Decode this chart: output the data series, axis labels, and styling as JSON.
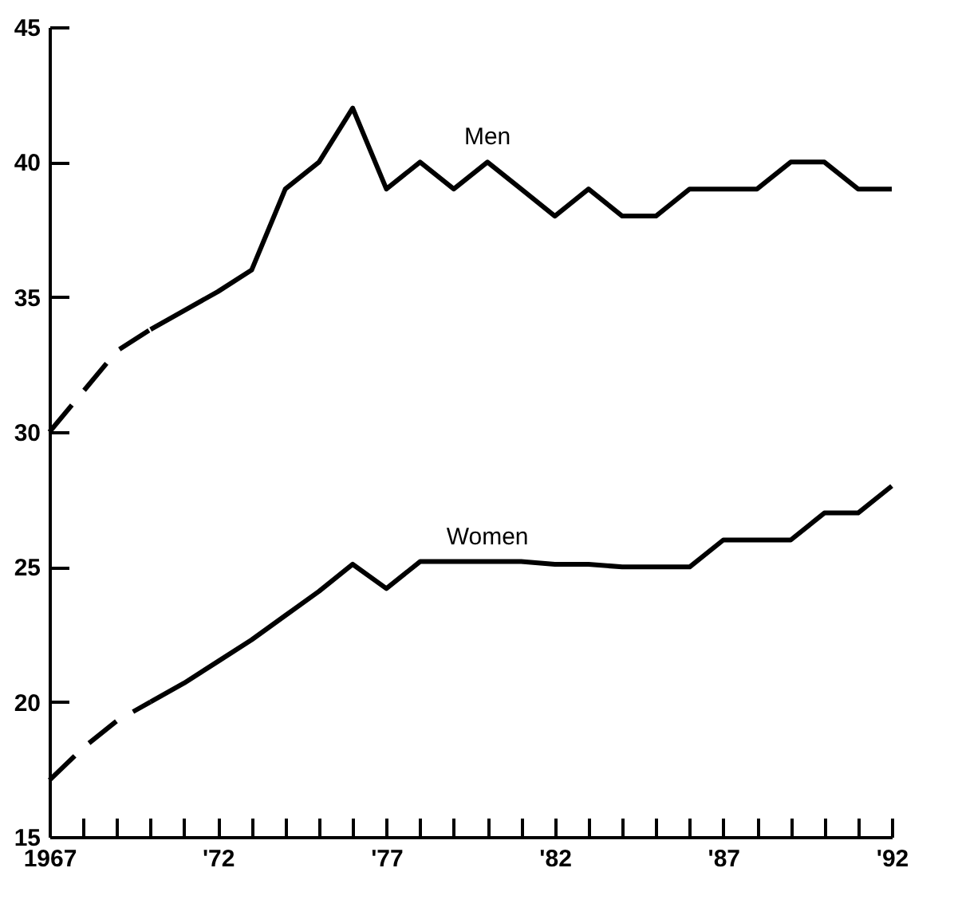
{
  "chart_data": {
    "type": "line",
    "x": [
      1970,
      1971,
      1972,
      1973,
      1974,
      1975,
      1976,
      1977,
      1978,
      1979,
      1980,
      1981,
      1982,
      1983,
      1984,
      1985,
      1986,
      1987,
      1988,
      1989,
      1990,
      1991,
      1992
    ],
    "series": [
      {
        "name": "Men",
        "color": "#000000",
        "line_style": "solid",
        "values": [
          33.8,
          34.5,
          35.2,
          36,
          39,
          40,
          42,
          39,
          40,
          39,
          40,
          39,
          38,
          39,
          38,
          38,
          39,
          39,
          39,
          40,
          40,
          39,
          39
        ]
      },
      {
        "name": "Women",
        "color": "#000000",
        "line_style": "solid",
        "values": [
          20,
          20.7,
          21.5,
          22.3,
          23.2,
          24.1,
          25.1,
          24.2,
          25.2,
          25.2,
          25.2,
          25.2,
          25.1,
          25.1,
          25,
          25,
          25,
          26,
          26,
          26,
          27,
          27,
          28
        ]
      },
      {
        "color": "#000000",
        "line_style": "dashed",
        "x": [
          1967,
          1968,
          1969,
          1970
        ],
        "values": [
          30,
          31.5,
          33,
          33.8
        ]
      },
      {
        "color": "#000000",
        "line_style": "dashed",
        "x": [
          1967,
          1968,
          1969,
          1970
        ],
        "values": [
          17.1,
          18.3,
          19.3,
          20
        ]
      }
    ],
    "xlim": [
      1967,
      1992
    ],
    "ylim": [
      15,
      45
    ],
    "yticks": [
      15,
      20,
      25,
      30,
      35,
      40,
      45
    ],
    "xticks": [
      {
        "value": 1967,
        "label": "1967"
      },
      {
        "value": 1968,
        "label": null
      },
      {
        "value": 1969,
        "label": null
      },
      {
        "value": 1970,
        "label": null
      },
      {
        "value": 1971,
        "label": null
      },
      {
        "value": 1972,
        "label": "'72"
      },
      {
        "value": 1973,
        "label": null
      },
      {
        "value": 1974,
        "label": null
      },
      {
        "value": 1975,
        "label": null
      },
      {
        "value": 1976,
        "label": null
      },
      {
        "value": 1977,
        "label": "'77"
      },
      {
        "value": 1978,
        "label": null
      },
      {
        "value": 1979,
        "label": null
      },
      {
        "value": 1980,
        "label": null
      },
      {
        "value": 1981,
        "label": null
      },
      {
        "value": 1982,
        "label": "'82"
      },
      {
        "value": 1983,
        "label": null
      },
      {
        "value": 1984,
        "label": null
      },
      {
        "value": 1985,
        "label": null
      },
      {
        "value": 1986,
        "label": null
      },
      {
        "value": 1987,
        "label": "'87"
      },
      {
        "value": 1988,
        "label": null
      },
      {
        "value": 1989,
        "label": null
      },
      {
        "value": 1990,
        "label": null
      },
      {
        "value": 1991,
        "label": null
      },
      {
        "value": 1992,
        "label": "'92"
      }
    ],
    "grid": false
  }
}
